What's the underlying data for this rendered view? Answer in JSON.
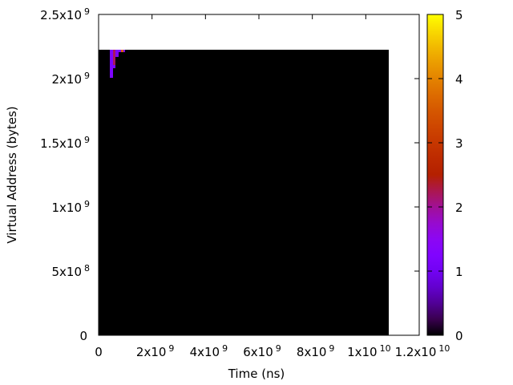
{
  "chart_data": {
    "type": "heatmap",
    "title": "",
    "xlabel": "Time (ns)",
    "ylabel": "Virtual Address (bytes)",
    "xlim": [
      0,
      12000000000
    ],
    "ylim": [
      0,
      2500000000
    ],
    "grid": false,
    "xticks": [
      {
        "value": 0,
        "base": "0",
        "exp": ""
      },
      {
        "value": 2000000000,
        "base": "2x10",
        "exp": "9"
      },
      {
        "value": 4000000000,
        "base": "4x10",
        "exp": "9"
      },
      {
        "value": 6000000000,
        "base": "6x10",
        "exp": "9"
      },
      {
        "value": 8000000000,
        "base": "8x10",
        "exp": "9"
      },
      {
        "value": 10000000000,
        "base": "1x10",
        "exp": "10"
      },
      {
        "value": 12000000000,
        "base": "1.2x10",
        "exp": "10"
      }
    ],
    "yticks": [
      {
        "value": 0,
        "base": "0",
        "exp": ""
      },
      {
        "value": 500000000,
        "base": "5x10",
        "exp": "8"
      },
      {
        "value": 1000000000,
        "base": "1x10",
        "exp": "9"
      },
      {
        "value": 1500000000,
        "base": "1.5x10",
        "exp": "9"
      },
      {
        "value": 2000000000,
        "base": "2x10",
        "exp": "9"
      },
      {
        "value": 2500000000,
        "base": "2.5x10",
        "exp": "9"
      }
    ],
    "colorbar": {
      "range": [
        0,
        5
      ],
      "ticks": [
        "0",
        "1",
        "2",
        "3",
        "4",
        "5"
      ]
    },
    "background_region": {
      "x": [
        0,
        10860000000
      ],
      "y": [
        0,
        2225000000
      ],
      "value": 0
    },
    "cells": [
      {
        "x": [
          420000000,
          540000000
        ],
        "y": [
          2006000000,
          2225000000
        ],
        "value": 1.2
      },
      {
        "x": [
          540000000,
          630000000
        ],
        "y": [
          2106000000,
          2225000000
        ],
        "value": 2.2
      },
      {
        "x": [
          540000000,
          630000000
        ],
        "y": [
          2081000000,
          2106000000
        ],
        "value": 1.2
      },
      {
        "x": [
          630000000,
          750000000
        ],
        "y": [
          2169000000,
          2225000000
        ],
        "value": 1.2
      },
      {
        "x": [
          750000000,
          840000000
        ],
        "y": [
          2206000000,
          2225000000
        ],
        "value": 1.2
      },
      {
        "x": [
          840000000,
          930000000
        ],
        "y": [
          2206000000,
          2225000000
        ],
        "value": 3.6
      },
      {
        "x": [
          930000000,
          990000000
        ],
        "y": [
          2206000000,
          2225000000
        ],
        "value": 1.2
      }
    ]
  }
}
